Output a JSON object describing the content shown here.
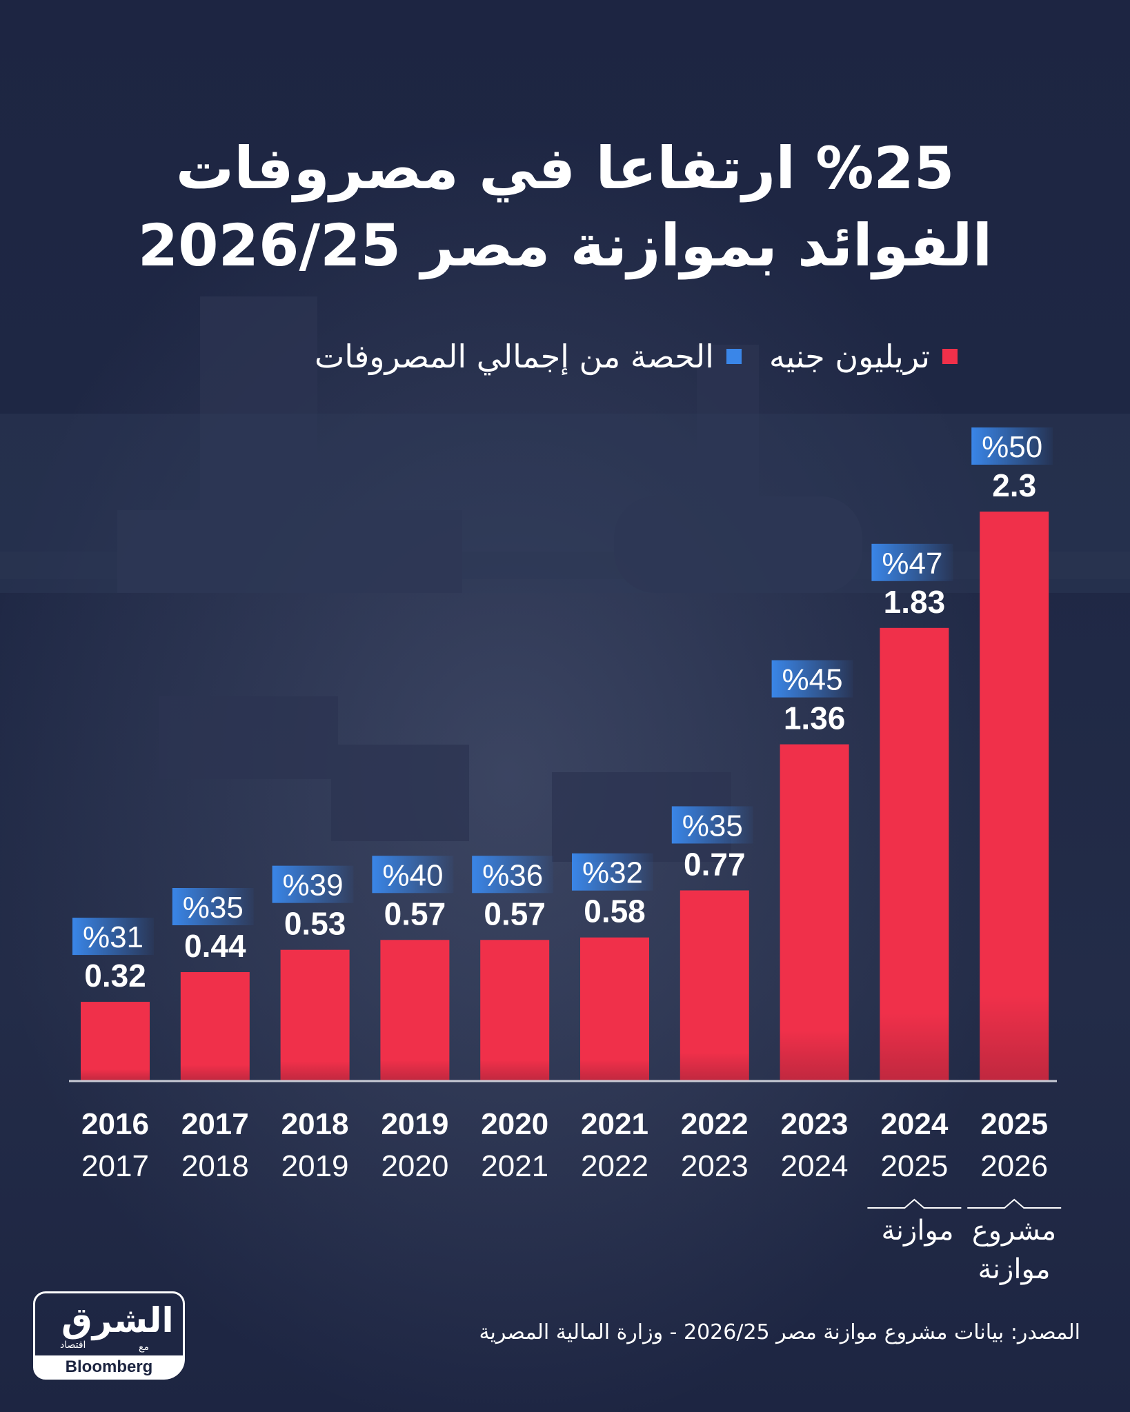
{
  "title_lines": [
    "%25 ارتفاعا في مصروفات",
    "الفوائد بموازنة مصر 2026/25"
  ],
  "legend": [
    {
      "label": "تريليون جنيه",
      "color": "#f0304a"
    },
    {
      "label": "الحصة من إجمالي المصروفات",
      "color": "#3a86e8"
    }
  ],
  "chart_data": {
    "type": "bar",
    "title": "%25 ارتفاعا في مصروفات الفوائد بموازنة مصر 2026/25",
    "categories": [
      "2016 2017",
      "2017 2018",
      "2018 2019",
      "2019 2020",
      "2020 2021",
      "2021 2022",
      "2022 2023",
      "2023 2024",
      "2024 2025",
      "2025 2026"
    ],
    "category_top": [
      "2016",
      "2017",
      "2018",
      "2019",
      "2020",
      "2021",
      "2022",
      "2023",
      "2024",
      "2025"
    ],
    "category_bottom": [
      "2017",
      "2018",
      "2019",
      "2020",
      "2021",
      "2022",
      "2023",
      "2024",
      "2025",
      "2026"
    ],
    "series": [
      {
        "name": "تريليون جنيه",
        "values": [
          0.32,
          0.44,
          0.53,
          0.57,
          0.57,
          0.58,
          0.77,
          1.36,
          1.83,
          2.3
        ],
        "labels": [
          "0.32",
          "0.44",
          "0.53",
          "0.57",
          "0.57",
          "0.58",
          "0.77",
          "1.36",
          "1.83",
          "2.3"
        ]
      },
      {
        "name": "الحصة من إجمالي المصروفات",
        "values": [
          31,
          35,
          39,
          40,
          36,
          32,
          35,
          45,
          47,
          50
        ],
        "labels": [
          "%31",
          "%35",
          "%39",
          "%40",
          "%36",
          "%32",
          "%35",
          "%45",
          "%47",
          "%50"
        ]
      }
    ],
    "ylim": [
      0,
      2.3
    ],
    "bar_color": "#f0304a",
    "share_color": "#3a86e8",
    "notes": [
      {
        "category_index": 8,
        "text": "موازنة"
      },
      {
        "category_index": 9,
        "text": "مشروع موازنة"
      }
    ]
  },
  "notes": {
    "budget": "موازنة",
    "draft_budget_line1": "مشروع",
    "draft_budget_line2": "موازنة"
  },
  "source": "المصدر: بيانات مشروع موازنة مصر 2026/25 - وزارة المالية المصرية",
  "logo": {
    "name_ar": "الشرق",
    "sub_ar": "اقتصاد",
    "with_ar": "مع",
    "partner": "Bloomberg"
  }
}
